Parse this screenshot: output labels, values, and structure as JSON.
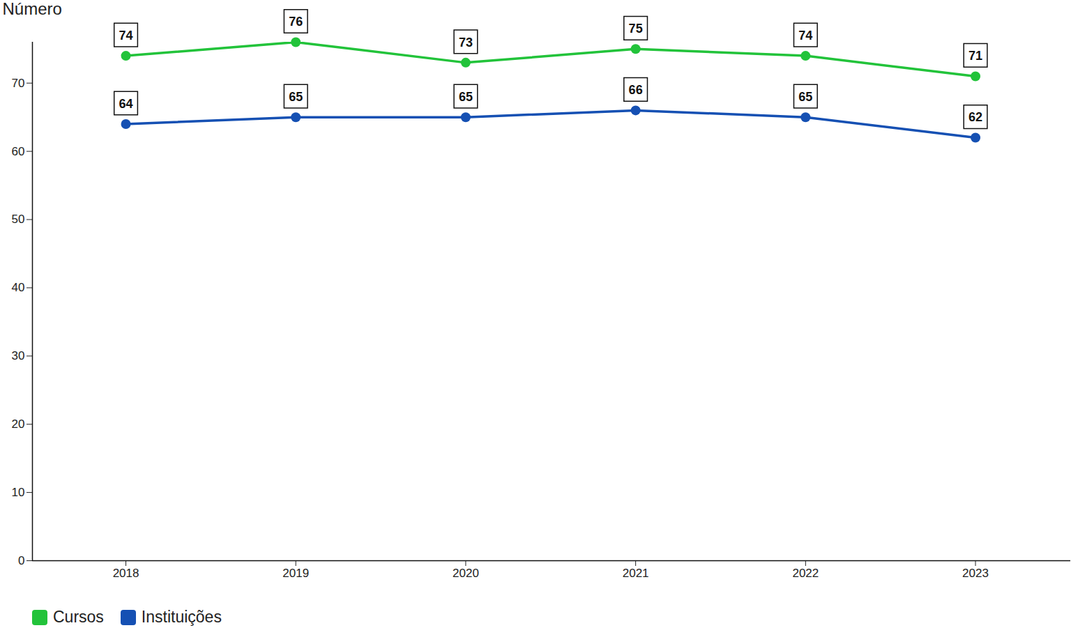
{
  "chart_data": {
    "type": "line",
    "y_label": "Número",
    "x": [
      2018,
      2019,
      2020,
      2021,
      2022,
      2023
    ],
    "xlim": [
      2017.45,
      2023.56
    ],
    "xticks": [
      2018,
      2019,
      2020,
      2021,
      2022,
      2023
    ],
    "ylim": [
      0,
      76
    ],
    "yticks": [
      0,
      10,
      20,
      30,
      40,
      50,
      60,
      70
    ],
    "series": [
      {
        "name": "Cursos",
        "color": "#22c33a",
        "values": [
          74,
          76,
          73,
          75,
          74,
          71
        ]
      },
      {
        "name": "Instituições",
        "color": "#1550b3",
        "values": [
          64,
          65,
          65,
          66,
          65,
          62
        ]
      }
    ],
    "data_labels": true,
    "marker": "circle",
    "legend": "bottom-left",
    "grid": false
  }
}
